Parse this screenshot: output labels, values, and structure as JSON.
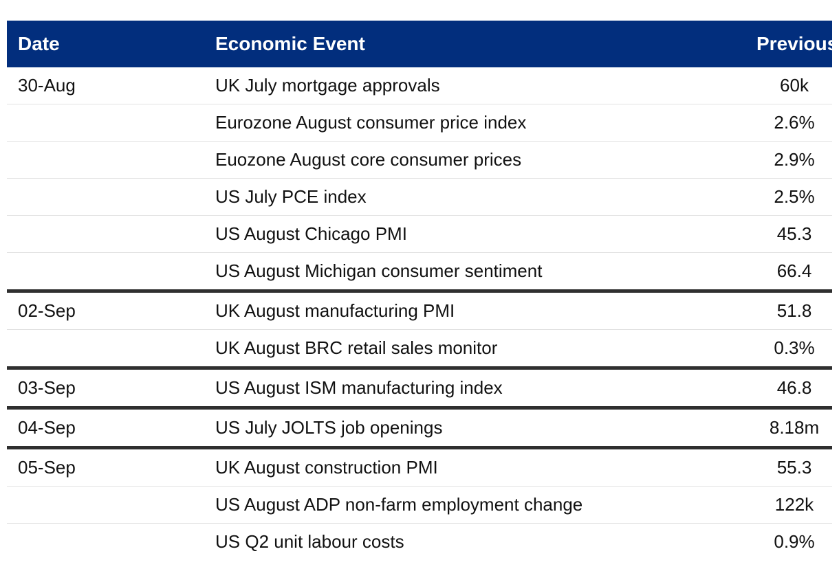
{
  "headers": {
    "date": "Date",
    "event": "Economic Event",
    "previous": "Previous"
  },
  "rows": [
    {
      "date": "30-Aug",
      "event": "UK July mortgage approvals",
      "previous": "60k"
    },
    {
      "date": "",
      "event": "Eurozone August consumer price index",
      "previous": "2.6%"
    },
    {
      "date": "",
      "event": "Euozone August core consumer prices",
      "previous": "2.9%"
    },
    {
      "date": "",
      "event": "US July PCE index",
      "previous": "2.5%"
    },
    {
      "date": "",
      "event": "US August Chicago PMI",
      "previous": "45.3"
    },
    {
      "date": "",
      "event": "US August Michigan consumer sentiment",
      "previous": "66.4"
    },
    {
      "date": "02-Sep",
      "event": "UK August manufacturing PMI",
      "previous": "51.8"
    },
    {
      "date": "",
      "event": "UK August BRC retail sales monitor",
      "previous": "0.3%"
    },
    {
      "date": "03-Sep",
      "event": "US August ISM manufacturing index",
      "previous": "46.8"
    },
    {
      "date": "04-Sep",
      "event": "US July JOLTS job openings",
      "previous": "8.18m"
    },
    {
      "date": "05-Sep",
      "event": "UK August construction PMI",
      "previous": "55.3"
    },
    {
      "date": "",
      "event": "US August ADP non-farm employment change",
      "previous": "122k"
    },
    {
      "date": "",
      "event": "US Q2 unit labour costs",
      "previous": "0.9%"
    }
  ],
  "colors": {
    "header_bg": "#022e7d",
    "header_text": "#ffffff",
    "group_divider": "#2f2f2f",
    "row_divider": "#e2e2e2"
  }
}
